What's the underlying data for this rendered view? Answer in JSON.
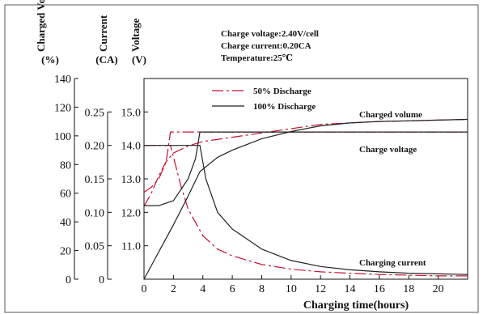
{
  "header": {
    "volume_title": "Charged\nVolume",
    "volume_unit": "(%)",
    "current_title": "Current",
    "current_unit": "(CA)",
    "voltage_title": "Voltage",
    "voltage_unit": "(V)"
  },
  "conditions": [
    "Charge voltage:2.40V/cell",
    "Charge current:0.20CA",
    "Temperature:25℃"
  ],
  "chart_data": {
    "type": "line",
    "xlabel": "Charging time(hours)",
    "xlim": [
      0,
      22
    ],
    "x_ticks": [
      0,
      2,
      4,
      6,
      8,
      10,
      12,
      14,
      16,
      18,
      20
    ],
    "axes": {
      "volume": {
        "unit": "%",
        "lim": [
          0,
          140
        ],
        "ticks": [
          0,
          20,
          40,
          60,
          80,
          100,
          120,
          140
        ]
      },
      "current": {
        "unit": "CA",
        "lim": [
          0,
          0.3
        ],
        "ticks": [
          "0",
          "0.05",
          "0.10",
          "0.15",
          "0.20",
          "0.25"
        ]
      },
      "voltage": {
        "unit": "V",
        "lim": [
          10.0,
          16.0
        ],
        "ticks": [
          "11.0",
          "12.0",
          "13.0",
          "14.0",
          "15.0"
        ]
      }
    },
    "legend": [
      {
        "label": "50% Discharge",
        "style": "dashdot",
        "color": "#c8102e"
      },
      {
        "label": "100% Discharge",
        "style": "solid",
        "color": "#222222"
      }
    ],
    "annotations": [
      "Charged volume",
      "Charge voltage",
      "Charging current"
    ],
    "series": [
      {
        "name": "50% Discharge",
        "color": "#c8102e",
        "dash": "14,4,3,4",
        "curves": [
          {
            "quantity": "Charged volume",
            "axis": "volume",
            "points": [
              [
                0,
                51
              ],
              [
                0.5,
                60
              ],
              [
                1,
                72
              ],
              [
                1.5,
                82
              ],
              [
                2,
                88
              ],
              [
                3,
                93
              ],
              [
                4,
                96
              ],
              [
                6,
                99
              ],
              [
                8,
                102
              ],
              [
                10,
                105
              ],
              [
                12,
                108
              ],
              [
                14,
                109
              ],
              [
                16,
                110
              ],
              [
                18,
                110.5
              ],
              [
                20,
                111
              ],
              [
                22,
                111.5
              ]
            ]
          },
          {
            "quantity": "Charge voltage",
            "axis": "voltage",
            "points": [
              [
                0,
                12.6
              ],
              [
                0.5,
                12.75
              ],
              [
                1,
                13.0
              ],
              [
                1.5,
                13.5
              ],
              [
                1.8,
                14.4
              ],
              [
                3.7,
                14.4
              ],
              [
                22,
                14.4
              ]
            ]
          },
          {
            "quantity": "Charging current",
            "axis": "current",
            "points": [
              [
                0,
                0.2
              ],
              [
                1.8,
                0.2
              ],
              [
                2.5,
                0.14
              ],
              [
                3,
                0.105
              ],
              [
                4,
                0.065
              ],
              [
                5,
                0.045
              ],
              [
                6,
                0.035
              ],
              [
                8,
                0.022
              ],
              [
                10,
                0.015
              ],
              [
                12,
                0.011
              ],
              [
                14,
                0.009
              ],
              [
                16,
                0.007
              ],
              [
                18,
                0.006
              ],
              [
                20,
                0.005
              ],
              [
                22,
                0.005
              ]
            ]
          }
        ]
      },
      {
        "name": "100% Discharge",
        "color": "#222222",
        "dash": "",
        "curves": [
          {
            "quantity": "Charged volume",
            "axis": "volume",
            "points": [
              [
                0,
                0
              ],
              [
                1,
                19
              ],
              [
                2,
                38
              ],
              [
                3,
                58
              ],
              [
                3.8,
                75
              ],
              [
                5,
                85
              ],
              [
                6,
                90
              ],
              [
                8,
                98
              ],
              [
                10,
                103
              ],
              [
                12,
                107
              ],
              [
                14,
                109
              ],
              [
                16,
                110
              ],
              [
                18,
                110.5
              ],
              [
                20,
                111
              ],
              [
                22,
                111.5
              ]
            ]
          },
          {
            "quantity": "Charge voltage",
            "axis": "voltage",
            "points": [
              [
                0,
                12.2
              ],
              [
                1,
                12.2
              ],
              [
                2,
                12.35
              ],
              [
                3,
                13.0
              ],
              [
                3.5,
                13.6
              ],
              [
                3.8,
                14.4
              ],
              [
                22,
                14.4
              ]
            ]
          },
          {
            "quantity": "Charging current",
            "axis": "current",
            "points": [
              [
                0,
                0.2
              ],
              [
                3.8,
                0.2
              ],
              [
                4.2,
                0.15
              ],
              [
                5,
                0.1
              ],
              [
                6,
                0.075
              ],
              [
                8,
                0.045
              ],
              [
                10,
                0.028
              ],
              [
                12,
                0.019
              ],
              [
                14,
                0.014
              ],
              [
                16,
                0.011
              ],
              [
                18,
                0.009
              ],
              [
                20,
                0.008
              ],
              [
                22,
                0.007
              ]
            ]
          }
        ]
      }
    ]
  }
}
